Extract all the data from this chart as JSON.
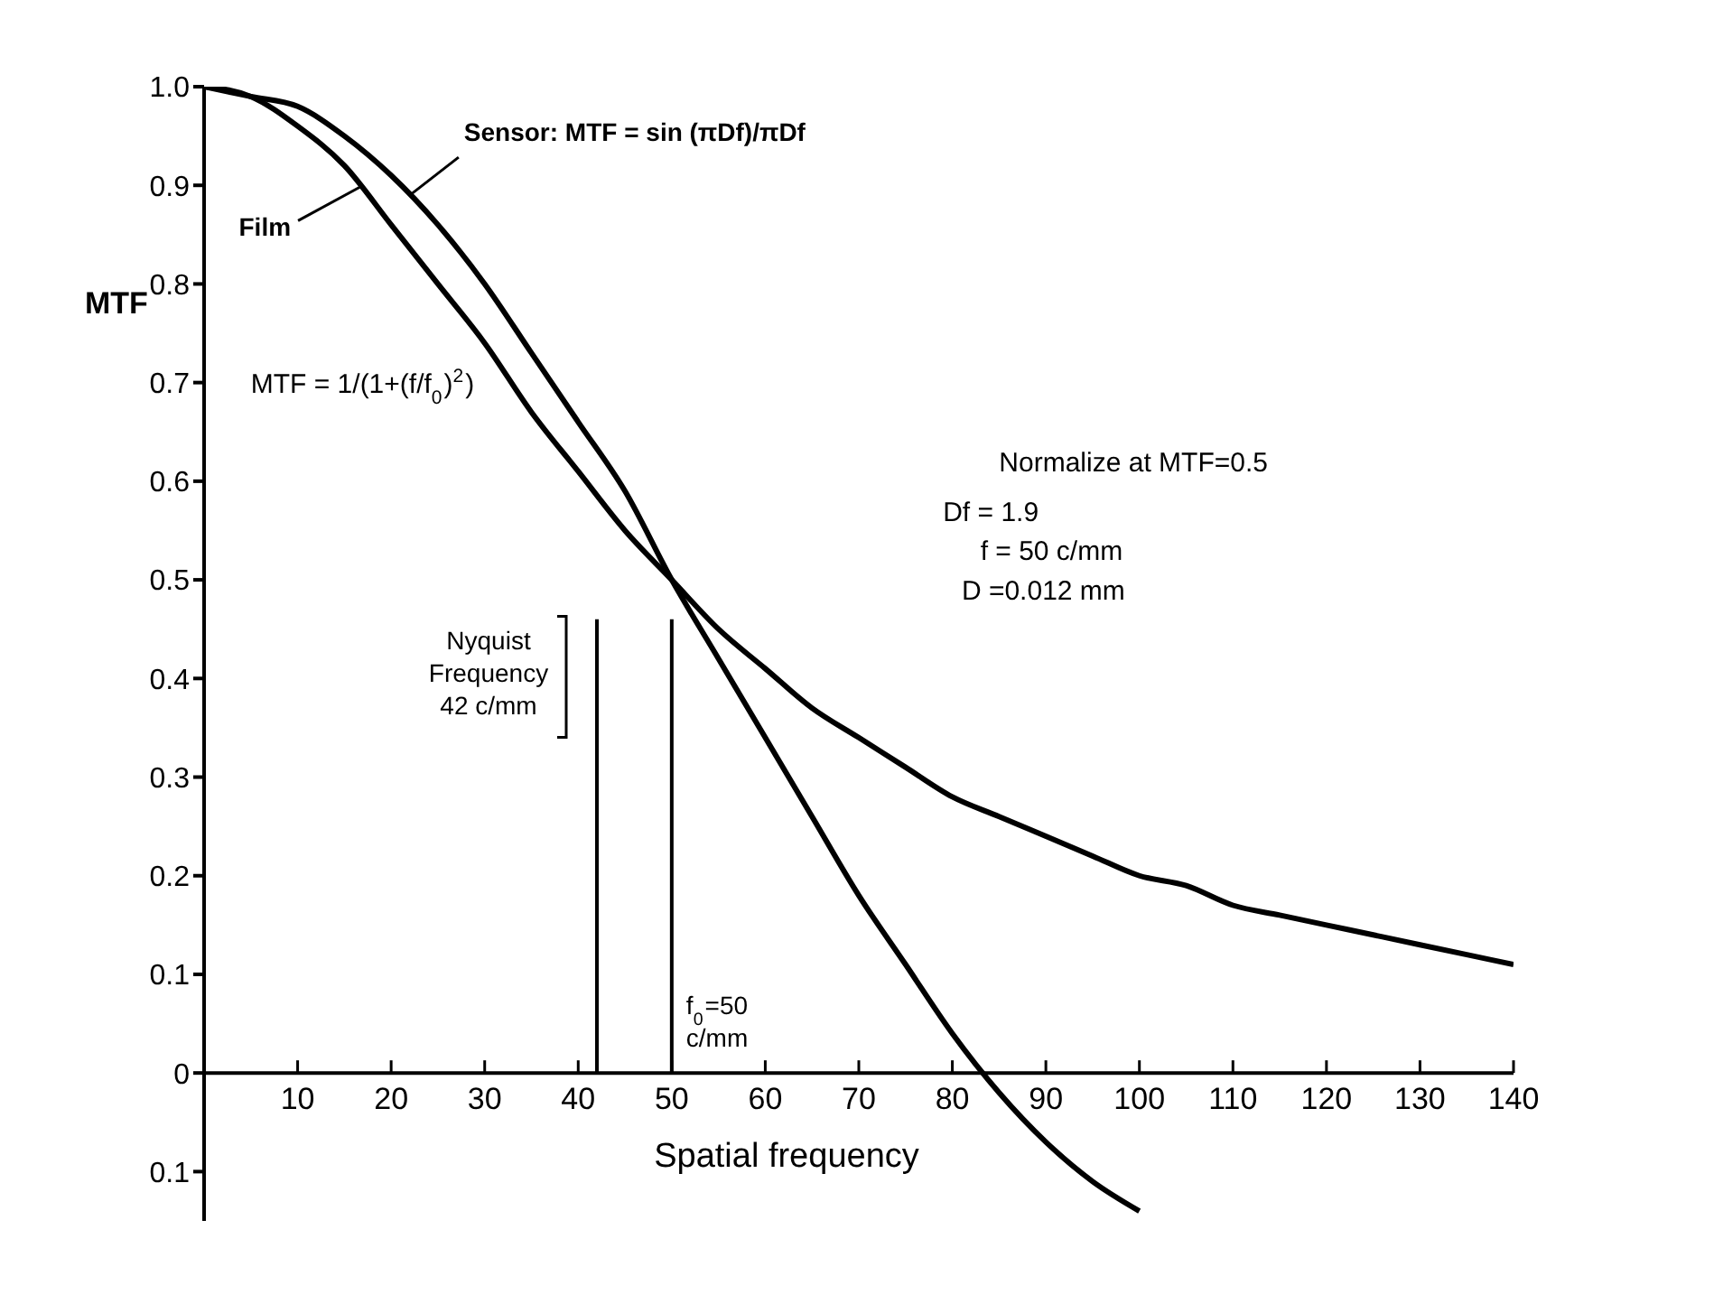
{
  "chart_data": {
    "type": "line",
    "xlabel": "Spatial frequency",
    "ylabel": "MTF",
    "xlim": [
      0,
      140
    ],
    "xticks": [
      10,
      20,
      30,
      40,
      50,
      60,
      70,
      80,
      90,
      100,
      110,
      120,
      130,
      140
    ],
    "ylim": [
      -0.15,
      1.0
    ],
    "yticks": [
      {
        "value": 1,
        "label": "1.0"
      },
      0.9,
      0.8,
      0.7,
      0.6,
      0.5,
      0.4,
      0.3,
      0.2,
      0.1,
      0,
      {
        "value": -0.1,
        "label": "0.1"
      }
    ],
    "series": [
      {
        "color": "#000000",
        "x": [
          0,
          5,
          10,
          15,
          20,
          25,
          30,
          35,
          40,
          45,
          50,
          55,
          60,
          65,
          70,
          75,
          80,
          85,
          90,
          95,
          100
        ],
        "values": [
          1.0,
          0.99,
          0.98,
          0.95,
          0.91,
          0.86,
          0.8,
          0.73,
          0.66,
          0.59,
          0.5,
          0.42,
          0.34,
          0.26,
          0.18,
          0.11,
          0.04,
          -0.02,
          -0.07,
          -0.11,
          -0.14
        ]
      },
      {
        "color": "#000000",
        "x": [
          0,
          5,
          10,
          15,
          20,
          25,
          30,
          35,
          40,
          45,
          50,
          55,
          60,
          65,
          70,
          75,
          80,
          85,
          90,
          95,
          100,
          105,
          110,
          115,
          120,
          125,
          130,
          135,
          140
        ],
        "values": [
          1.0,
          0.99,
          0.96,
          0.92,
          0.86,
          0.8,
          0.74,
          0.67,
          0.61,
          0.55,
          0.5,
          0.45,
          0.41,
          0.37,
          0.34,
          0.31,
          0.28,
          0.26,
          0.24,
          0.22,
          0.2,
          0.19,
          0.17,
          0.16,
          0.15,
          0.14,
          0.13,
          0.12,
          0.11
        ]
      }
    ],
    "ref_lines": [
      {
        "axis": "x",
        "value": 42,
        "label": "Nyquist Frequency 42 c/mm",
        "color": "#000000"
      },
      {
        "axis": "x",
        "value": 50,
        "label": "f$_{0}$=50 c/mm",
        "color": "#000000"
      }
    ],
    "annotations": [
      {
        "text": "Sensor: MTF = sin (πDf)/πDf",
        "x": 22,
        "y": 0.89
      },
      {
        "text": "Film",
        "x": 17,
        "y": 0.9
      },
      "MTF = 1/(1+(f/f$_{0}$)$^{2}$)",
      "Normalize at MTF=0.5",
      "Df = 1.9",
      "f = 50 c/mm",
      "D =0.012 mm"
    ],
    "grid": false,
    "legend": false,
    "marker": "none",
    "line_style": "solid"
  }
}
